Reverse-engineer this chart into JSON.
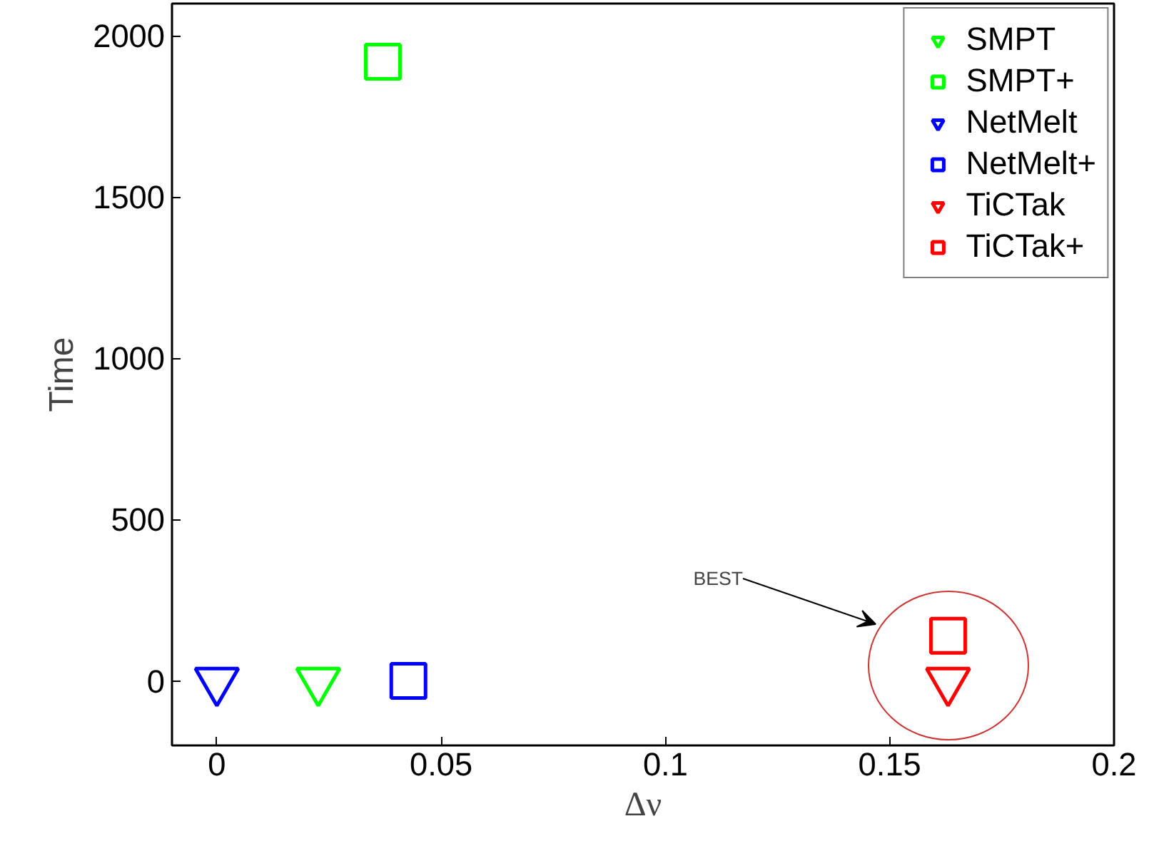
{
  "chart_data": {
    "type": "scatter",
    "xlabel": "Δν",
    "ylabel": "Time",
    "xlim": [
      -0.01,
      0.2
    ],
    "ylim": [
      -200,
      2100
    ],
    "xticks": [
      0,
      0.05,
      0.1,
      0.15,
      0.2
    ],
    "yticks": [
      0,
      500,
      1000,
      1500,
      2000
    ],
    "grid": false,
    "legend": "top right",
    "series": [
      {
        "name": "SMPT",
        "color": "#00ff00",
        "marker": "triangle",
        "x": [
          0.0226
        ],
        "values": [
          0
        ]
      },
      {
        "name": "SMPT+",
        "color": "#00ff00",
        "marker": "square",
        "x": [
          0.037
        ],
        "values": [
          1920
        ]
      },
      {
        "name": "NetMelt",
        "color": "#0000ff",
        "marker": "triangle",
        "x": [
          0.0
        ],
        "values": [
          0
        ]
      },
      {
        "name": "NetMelt+",
        "color": "#0000ff",
        "marker": "square",
        "x": [
          0.0427
        ],
        "values": [
          0
        ]
      },
      {
        "name": "TiCTak",
        "color": "#ff0000",
        "marker": "triangle",
        "x": [
          0.163
        ],
        "values": [
          0
        ]
      },
      {
        "name": "TiCTak+",
        "color": "#ff0000",
        "marker": "square",
        "x": [
          0.163
        ],
        "values": [
          140
        ]
      }
    ],
    "annotations": [
      "BEST"
    ]
  }
}
